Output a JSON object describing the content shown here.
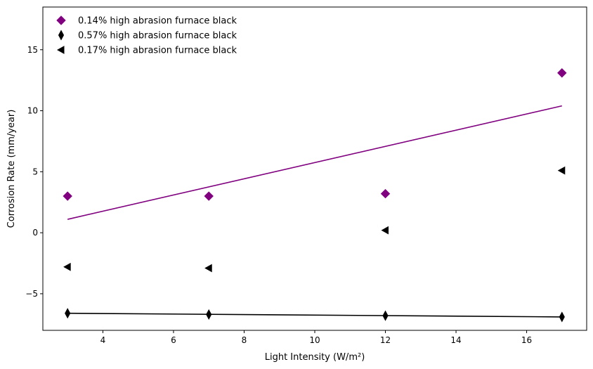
{
  "chart_data": {
    "type": "scatter",
    "title": "",
    "xlabel": "Light Intensity (W/m²)",
    "ylabel": "Corrosion Rate (mm/year)",
    "xlim": [
      2.3,
      17.7
    ],
    "ylim": [
      -8.0,
      18.5
    ],
    "xticks": [
      4,
      6,
      8,
      10,
      12,
      14,
      16
    ],
    "yticks": [
      -5,
      0,
      5,
      10,
      15
    ],
    "xtick_labels": [
      "4",
      "6",
      "8",
      "10",
      "12",
      "14",
      "16"
    ],
    "ytick_labels": [
      "−5",
      "0",
      "5",
      "10",
      "15"
    ],
    "grid": false,
    "legend_position": "top-left",
    "series": [
      {
        "name": "0.14% high abrasion furnace black",
        "marker": "diamond",
        "color": "#800080",
        "x": [
          3,
          7,
          12,
          17
        ],
        "y": [
          3.0,
          3.0,
          3.2,
          13.1
        ],
        "trendline": {
          "x": [
            3,
            17
          ],
          "y": [
            1.1,
            10.4
          ],
          "color": "#800080"
        }
      },
      {
        "name": "0.57% high abrasion furnace black",
        "marker": "thin_diamond",
        "color": "#000000",
        "x": [
          3,
          7,
          12,
          17
        ],
        "y": [
          -6.6,
          -6.7,
          -6.8,
          -6.9
        ],
        "trendline": {
          "x": [
            3,
            17
          ],
          "y": [
            -6.6,
            -6.9
          ],
          "color": "#000000"
        }
      },
      {
        "name": "0.17% high abrasion furnace black",
        "marker": "triangle_left",
        "color": "#000000",
        "x": [
          3,
          7,
          12,
          17
        ],
        "y": [
          -2.8,
          -2.9,
          0.2,
          5.1
        ]
      }
    ]
  }
}
